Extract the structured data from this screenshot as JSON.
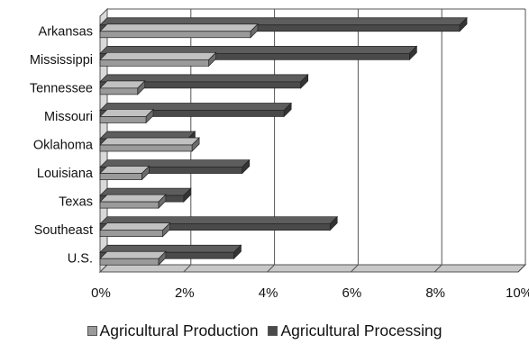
{
  "chart_data": {
    "type": "bar",
    "orientation": "horizontal",
    "style": "3d",
    "categories": [
      "Arkansas",
      "Mississippi",
      "Tennessee",
      "Missouri",
      "Oklahoma",
      "Louisiana",
      "Texas",
      "Southeast",
      "U.S."
    ],
    "series": [
      {
        "name": "Agricultural Production",
        "values": [
          3.6,
          2.6,
          0.9,
          1.1,
          2.2,
          1.0,
          1.4,
          1.5,
          1.4
        ],
        "color": "#9a9a9a"
      },
      {
        "name": "Agricultural Processing",
        "values": [
          8.6,
          7.4,
          4.8,
          4.4,
          2.1,
          3.4,
          2.0,
          5.5,
          3.2
        ],
        "color": "#4a4a4a"
      }
    ],
    "x_ticks": [
      "0%",
      "2%",
      "4%",
      "6%",
      "8%",
      "10%"
    ],
    "xlim": [
      0,
      10
    ],
    "grid": true,
    "legend_position": "bottom"
  }
}
